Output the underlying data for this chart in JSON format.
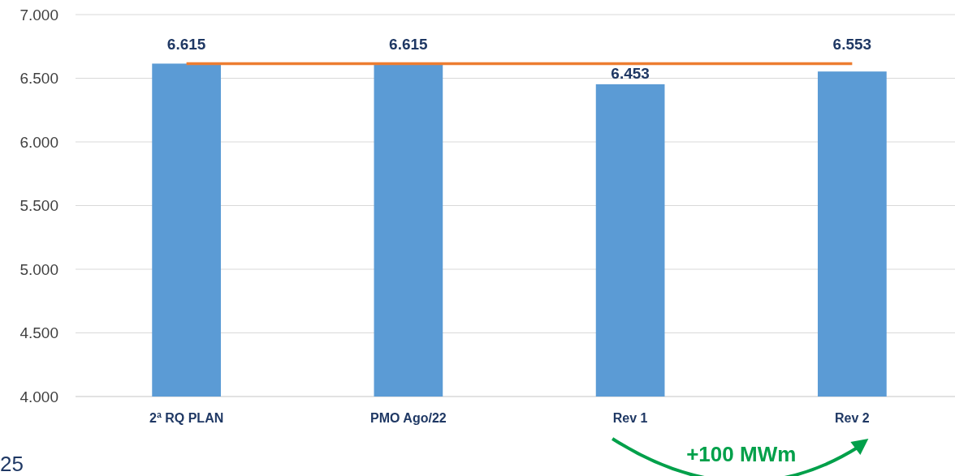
{
  "chart_data": {
    "type": "bar",
    "categories": [
      "2ª RQ PLAN",
      "PMO Ago/22",
      "Rev 1",
      "Rev 2"
    ],
    "series": [
      {
        "color": "#5b9bd5",
        "values": [
          6615,
          6615,
          6453,
          6553
        ],
        "value_labels": [
          "6.615",
          "6.615",
          "6.453",
          "6.553"
        ]
      },
      {
        "type": "line",
        "color": "#ed7d31",
        "values": [
          6615,
          6615,
          6615,
          6615
        ]
      }
    ],
    "ylim": [
      4000,
      7000
    ],
    "yticks": [
      {
        "value": 4000,
        "label": "4.000"
      },
      {
        "value": 4500,
        "label": "4.500"
      },
      {
        "value": 5000,
        "label": "5.000"
      },
      {
        "value": 5500,
        "label": "5.500"
      },
      {
        "value": 6000,
        "label": "6.000"
      },
      {
        "value": 6500,
        "label": "6.500"
      },
      {
        "value": 7000,
        "label": "7.000"
      }
    ],
    "grid": "y",
    "marker": "none",
    "line_style": "solid",
    "annotations": [
      "+100 MWm",
      "25"
    ]
  }
}
